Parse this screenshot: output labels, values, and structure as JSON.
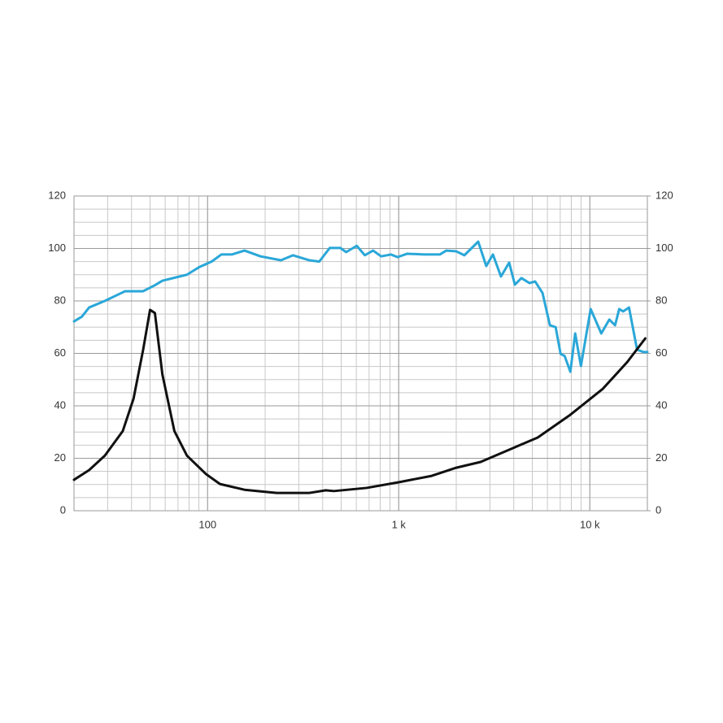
{
  "chart_data": {
    "type": "line",
    "xscale": "log",
    "xlim": [
      20,
      20000
    ],
    "xticks": [
      100,
      {
        "value": 1000,
        "label": "1 k"
      },
      {
        "value": 10000,
        "label": "10 k"
      }
    ],
    "ylim": [
      0,
      120
    ],
    "yticks": [
      0,
      20,
      40,
      60,
      80,
      100,
      120
    ],
    "y2lim": [
      0,
      120
    ],
    "y2ticks": [
      0,
      20,
      40,
      60,
      80,
      100,
      120
    ],
    "grid": true,
    "minor_grid": true,
    "series": [
      {
        "color": "#2aa7d8",
        "x": [
          20,
          22,
          24,
          29,
          37,
          46,
          53,
          58,
          78,
          91,
          105,
          118,
          134,
          156,
          189,
          242,
          280,
          341,
          384,
          436,
          495,
          531,
          603,
          665,
          734,
          809,
          911,
          986,
          1109,
          1349,
          1641,
          1775,
          2000,
          2205,
          2606,
          2871,
          3111,
          3428,
          3783,
          4053,
          4385,
          4832,
          5177,
          5656,
          6183,
          6624,
          7031,
          7382,
          7909,
          8383,
          8981,
          10100,
          11480,
          12650,
          13550,
          14250,
          14960,
          16030,
          17670,
          19100,
          20000
        ],
        "values": [
          72.2,
          74,
          77.5,
          80,
          83.7,
          83.7,
          86,
          87.7,
          90,
          93,
          95,
          97.7,
          97.7,
          99.2,
          97,
          95.5,
          97.4,
          95.5,
          95,
          100.2,
          100.2,
          98.6,
          101,
          97.4,
          99.2,
          97,
          97.7,
          96.7,
          98,
          97.7,
          97.7,
          99.2,
          98.9,
          97.4,
          102.6,
          93.3,
          97.7,
          89.3,
          94.6,
          86.2,
          88.7,
          86.8,
          87.4,
          83,
          70.7,
          70,
          59.8,
          59,
          53,
          67.6,
          55.2,
          76.9,
          67.6,
          72.9,
          70.7,
          76.9,
          76,
          77.5,
          61.4,
          60.5,
          60.5
        ]
      },
      {
        "color": "#111111",
        "axis": "y2",
        "x": [
          20,
          24,
          29,
          36,
          41,
          46,
          50,
          53,
          58,
          67,
          78,
          98,
          116,
          156,
          230,
          341,
          415,
          458,
          679,
          1005,
          1489,
          2000,
          2683,
          3603,
          5337,
          7909,
          11700,
          15700,
          19500
        ],
        "values": [
          11.8,
          15.5,
          21,
          30.4,
          42.8,
          61.4,
          76.6,
          75.4,
          52,
          30.4,
          21,
          14,
          10.2,
          8,
          6.8,
          6.8,
          7.8,
          7.5,
          8.7,
          10.9,
          13.3,
          16.4,
          18.6,
          22.6,
          27.9,
          36.6,
          46.5,
          56.7,
          65.7
        ]
      }
    ]
  }
}
